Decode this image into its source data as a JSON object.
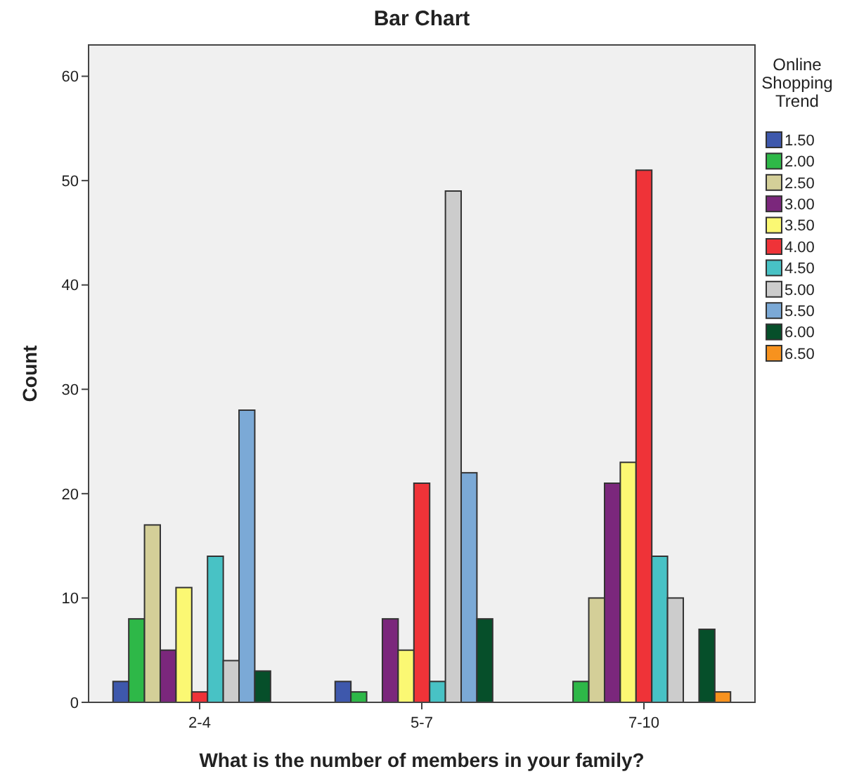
{
  "chart_data": {
    "type": "bar",
    "title": "Bar Chart",
    "xlabel": "What is the number of members in your family?",
    "ylabel": "Count",
    "legend_title": "Online Shopping Trend",
    "categories": [
      "2-4",
      "5-7",
      "7-10"
    ],
    "series": [
      {
        "name": "1.50",
        "color": "#3e58ac",
        "values": [
          2,
          2,
          null
        ]
      },
      {
        "name": "2.00",
        "color": "#2eb848",
        "values": [
          8,
          1,
          2
        ]
      },
      {
        "name": "2.50",
        "color": "#d4cf98",
        "values": [
          17,
          null,
          10
        ]
      },
      {
        "name": "3.00",
        "color": "#7b277c",
        "values": [
          5,
          8,
          21
        ]
      },
      {
        "name": "3.50",
        "color": "#fbf873",
        "values": [
          11,
          5,
          23
        ]
      },
      {
        "name": "4.00",
        "color": "#ef3338",
        "values": [
          1,
          21,
          51
        ]
      },
      {
        "name": "4.50",
        "color": "#48c2c5",
        "values": [
          14,
          2,
          14
        ]
      },
      {
        "name": "5.00",
        "color": "#cccccc",
        "values": [
          4,
          49,
          10
        ]
      },
      {
        "name": "5.50",
        "color": "#7ba9d6",
        "values": [
          28,
          22,
          null
        ]
      },
      {
        "name": "6.00",
        "color": "#064f2a",
        "values": [
          3,
          8,
          7
        ]
      },
      {
        "name": "6.50",
        "color": "#f7921e",
        "values": [
          null,
          null,
          1
        ]
      }
    ],
    "ylim": [
      0,
      63
    ],
    "yticks": [
      0,
      10,
      20,
      30,
      40,
      50,
      60
    ],
    "grid": false,
    "legend": "right"
  }
}
